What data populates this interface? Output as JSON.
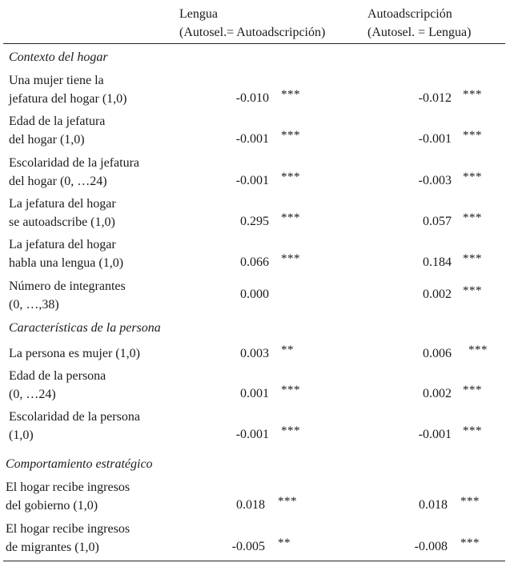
{
  "header": {
    "col1_line1": "Lengua",
    "col1_line2": "(Autosel.= Autoadscripción)",
    "col2_line1": "Autoadscripción",
    "col2_line2": "(Autosel. = Lengua)"
  },
  "sections": [
    {
      "title": "Contexto del hogar"
    },
    {
      "title": "Características de la persona"
    },
    {
      "title": "Comportamiento estratégico"
    }
  ],
  "rows": [
    {
      "label1": "Una mujer tiene la",
      "label2": "jefatura del hogar (1,0)",
      "v1": "-0.010",
      "s1": "***",
      "v2": "-0.012",
      "s2": "***"
    },
    {
      "label1": "Edad de la jefatura",
      "label2": "del hogar (1,0)",
      "v1": "-0.001",
      "s1": "***",
      "v2": "-0.001",
      "s2": "***"
    },
    {
      "label1": "Escolaridad de la jefatura",
      "label2": "del hogar (0, …24)",
      "v1": "-0.001",
      "s1": "***",
      "v2": "-0.003",
      "s2": "***"
    },
    {
      "label1": "La jefatura del hogar",
      "label2": "se autoadscribe (1,0)",
      "v1": "0.295",
      "s1": "***",
      "v2": "0.057",
      "s2": "***"
    },
    {
      "label1": "La jefatura del hogar",
      "label2": "habla una lengua (1,0)",
      "v1": "0.066",
      "s1": "***",
      "v2": "0.184",
      "s2": "***"
    },
    {
      "label1": "Número de integrantes",
      "label2": "(0, …,38)",
      "v1": "0.000",
      "s1": "",
      "v2": "0.002",
      "s2": "***"
    },
    {
      "label1": "La persona es mujer (1,0)",
      "label2": "",
      "v1": "0.003",
      "s1": "**",
      "v2": "0.006",
      "s2": "***"
    },
    {
      "label1": "Edad de la persona",
      "label2": "(0, …24)",
      "v1": "0.001",
      "s1": "***",
      "v2": "0.002",
      "s2": "***"
    },
    {
      "label1": "Escolaridad de la persona",
      "label2": "(1,0)",
      "v1": "-0.001",
      "s1": "***",
      "v2": "-0.001",
      "s2": "***"
    },
    {
      "label1": "El hogar recibe ingresos",
      "label2": "del gobierno (1,0)",
      "v1": "0.018",
      "s1": "***",
      "v2": "0.018",
      "s2": "***"
    },
    {
      "label1": "El hogar recibe ingresos",
      "label2": "de migrantes (1,0)",
      "v1": "-0.005",
      "s1": "**",
      "v2": "-0.008",
      "s2": "***"
    }
  ]
}
